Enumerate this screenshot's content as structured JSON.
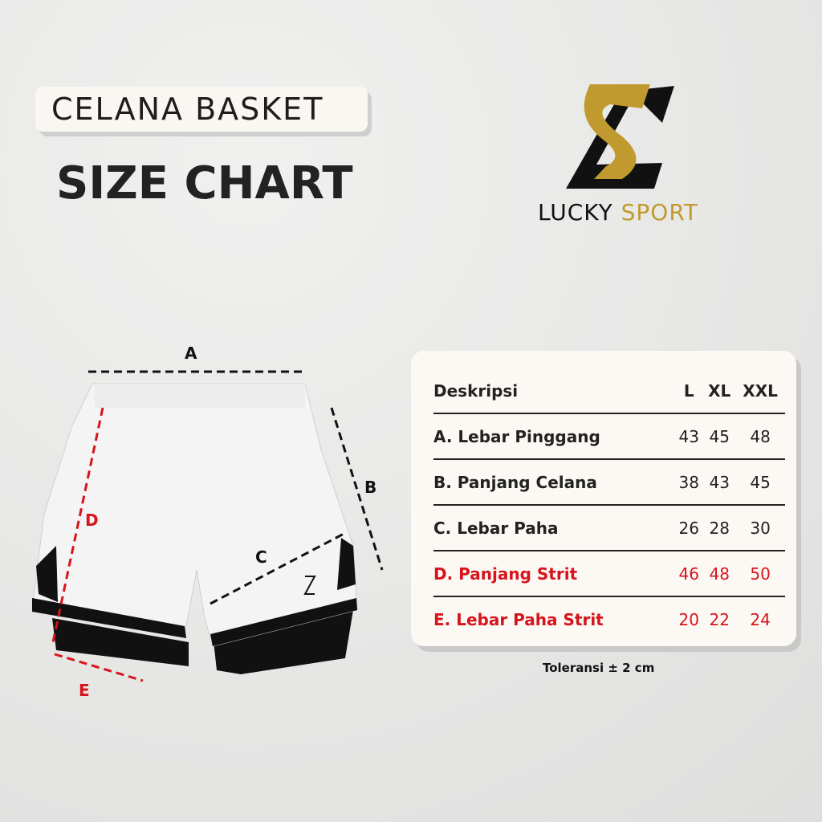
{
  "header": {
    "category": "CELANA BASKET",
    "title": "SIZE CHART"
  },
  "logo": {
    "word1": "LUCKY",
    "word2": "SPORT",
    "colors": {
      "gold": "#c09a2e",
      "black": "#111111"
    }
  },
  "diagram": {
    "labels": {
      "a": "A",
      "b": "B",
      "c": "C",
      "d": "D",
      "e": "E"
    },
    "colors": {
      "black_lines": "#111111",
      "red_lines": "#d7141b"
    }
  },
  "table": {
    "headers": [
      "Deskripsi",
      "L",
      "XL",
      "XXL"
    ],
    "rows": [
      {
        "label": "A. Lebar Pinggang",
        "values": [
          "43",
          "45",
          "48"
        ]
      },
      {
        "label": "B. Panjang Celana",
        "values": [
          "38",
          "43",
          "45"
        ]
      },
      {
        "label": "C. Lebar Paha",
        "values": [
          "26",
          "28",
          "30"
        ]
      },
      {
        "label": "D. Panjang Strit",
        "values": [
          "46",
          "48",
          "50"
        ],
        "highlight": "#d7141b"
      },
      {
        "label": "E. Lebar Paha Strit",
        "values": [
          "20",
          "22",
          "24"
        ],
        "highlight": "#d7141b"
      }
    ]
  },
  "footer": {
    "tolerance": "Toleransi ± 2 cm"
  }
}
